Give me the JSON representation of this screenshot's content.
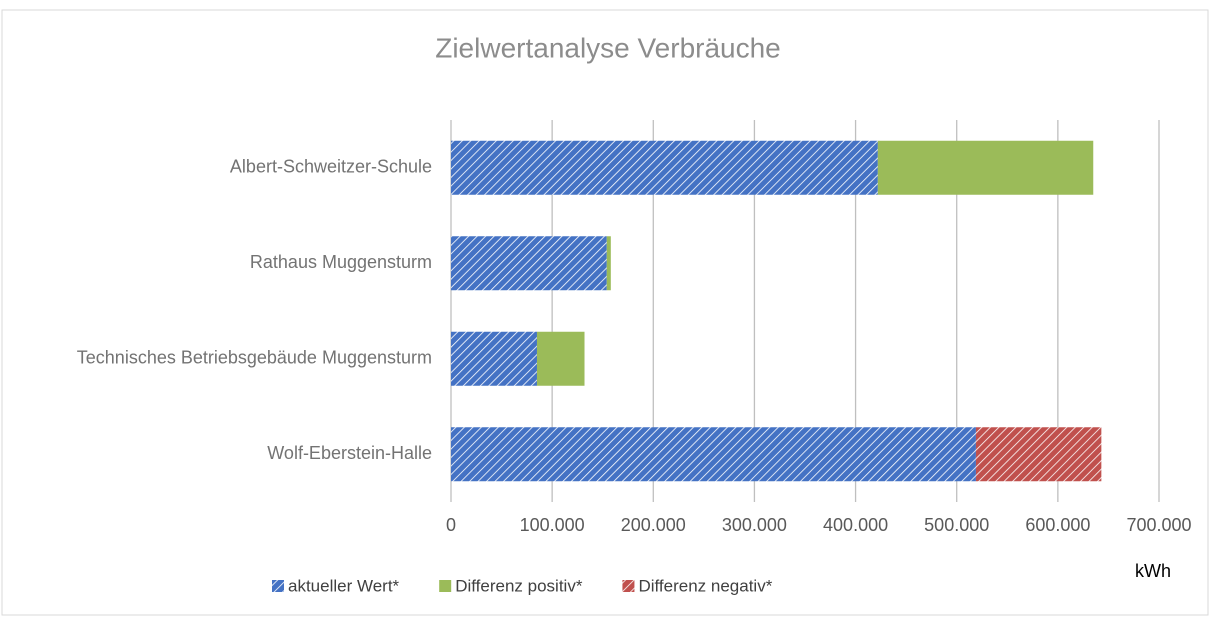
{
  "chart_data": {
    "type": "bar",
    "orientation": "horizontal",
    "stacked": true,
    "title": "Zielwertanalyse Verbräuche",
    "x_label": "kWh",
    "categories": [
      "Albert-Schweitzer-Schule",
      "Rathaus Muggensturm",
      "Technisches Betriebsgebäude Muggensturm",
      "Wolf-Eberstein-Halle"
    ],
    "series": [
      {
        "name": "aktueller Wert*",
        "color": "#4472c4",
        "hatch": true,
        "values": [
          422000,
          154000,
          85000,
          519000
        ]
      },
      {
        "name": "Differenz positiv*",
        "color": "#9bbb59",
        "hatch": false,
        "values": [
          213000,
          4000,
          47000,
          null
        ]
      },
      {
        "name": "Differenz negativ*",
        "color": "#c0504d",
        "hatch": true,
        "values": [
          null,
          null,
          null,
          124000
        ]
      }
    ],
    "xlim": [
      0,
      700000
    ],
    "xticks": [
      0,
      {
        "value": 100000,
        "label": "100.000"
      },
      {
        "value": 200000,
        "label": "200.000"
      },
      {
        "value": 300000,
        "label": "300.000"
      },
      {
        "value": 400000,
        "label": "400.000"
      },
      {
        "value": 500000,
        "label": "500.000"
      },
      {
        "value": 600000,
        "label": "600.000"
      },
      {
        "value": 700000,
        "label": "700.000"
      }
    ],
    "grid": true,
    "legend": "bottom"
  }
}
